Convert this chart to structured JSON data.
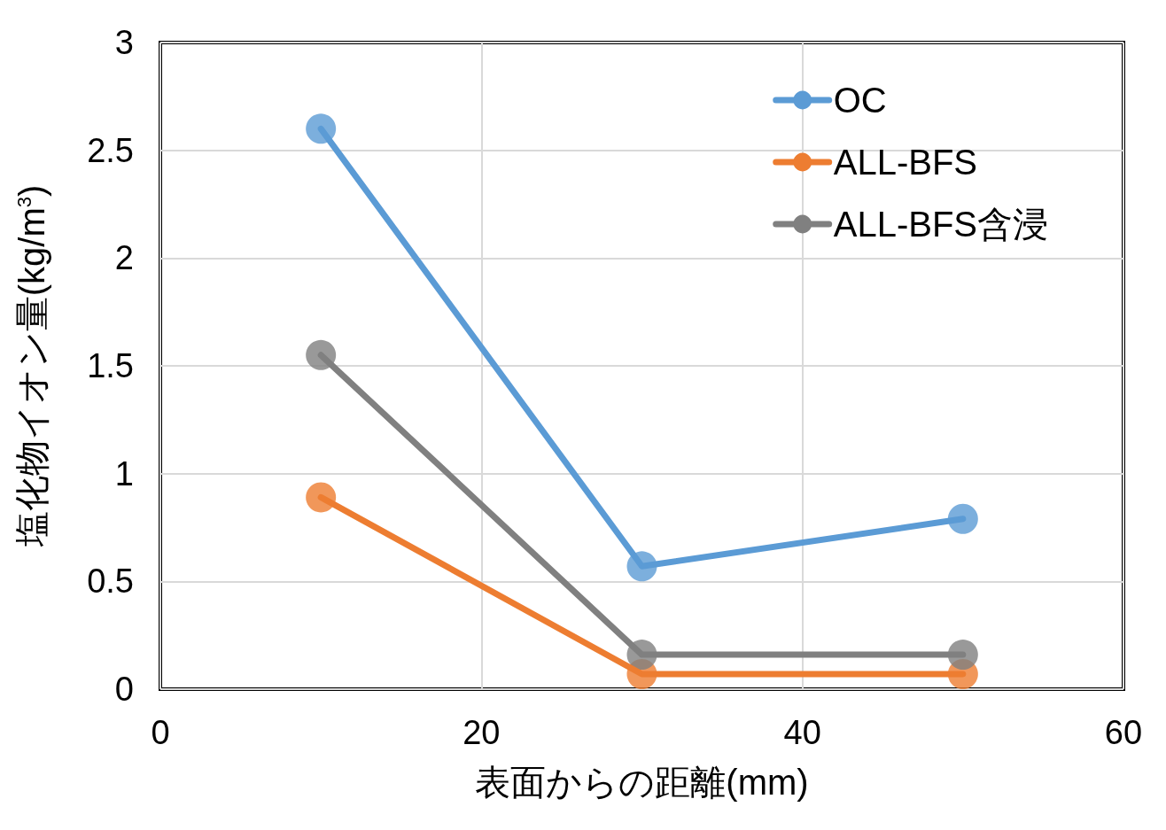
{
  "chart_data": {
    "type": "line",
    "xlabel": "表面からの距離(mm)",
    "ylabel": "塩化物イオン量(kg/m$^{3}$)",
    "x": [
      10,
      30,
      50
    ],
    "series": [
      {
        "name": "OC",
        "color": "#5b9bd5",
        "values": [
          2.6,
          0.57,
          0.79
        ]
      },
      {
        "name": "ALL-BFS",
        "color": "#ed7d31",
        "values": [
          0.89,
          0.07,
          0.07
        ]
      },
      {
        "name": "ALL-BFS含浸",
        "color": "#808080",
        "values": [
          1.55,
          0.16,
          0.16
        ]
      }
    ],
    "xlim": [
      0,
      60
    ],
    "xticks": [
      0,
      20,
      40,
      60
    ],
    "ylim": [
      0,
      3
    ],
    "yticks": [
      0,
      0.5,
      1,
      1.5,
      2,
      2.5,
      3
    ],
    "grid": true,
    "legend": "top right",
    "marker": "circle",
    "line_style": "solid"
  }
}
